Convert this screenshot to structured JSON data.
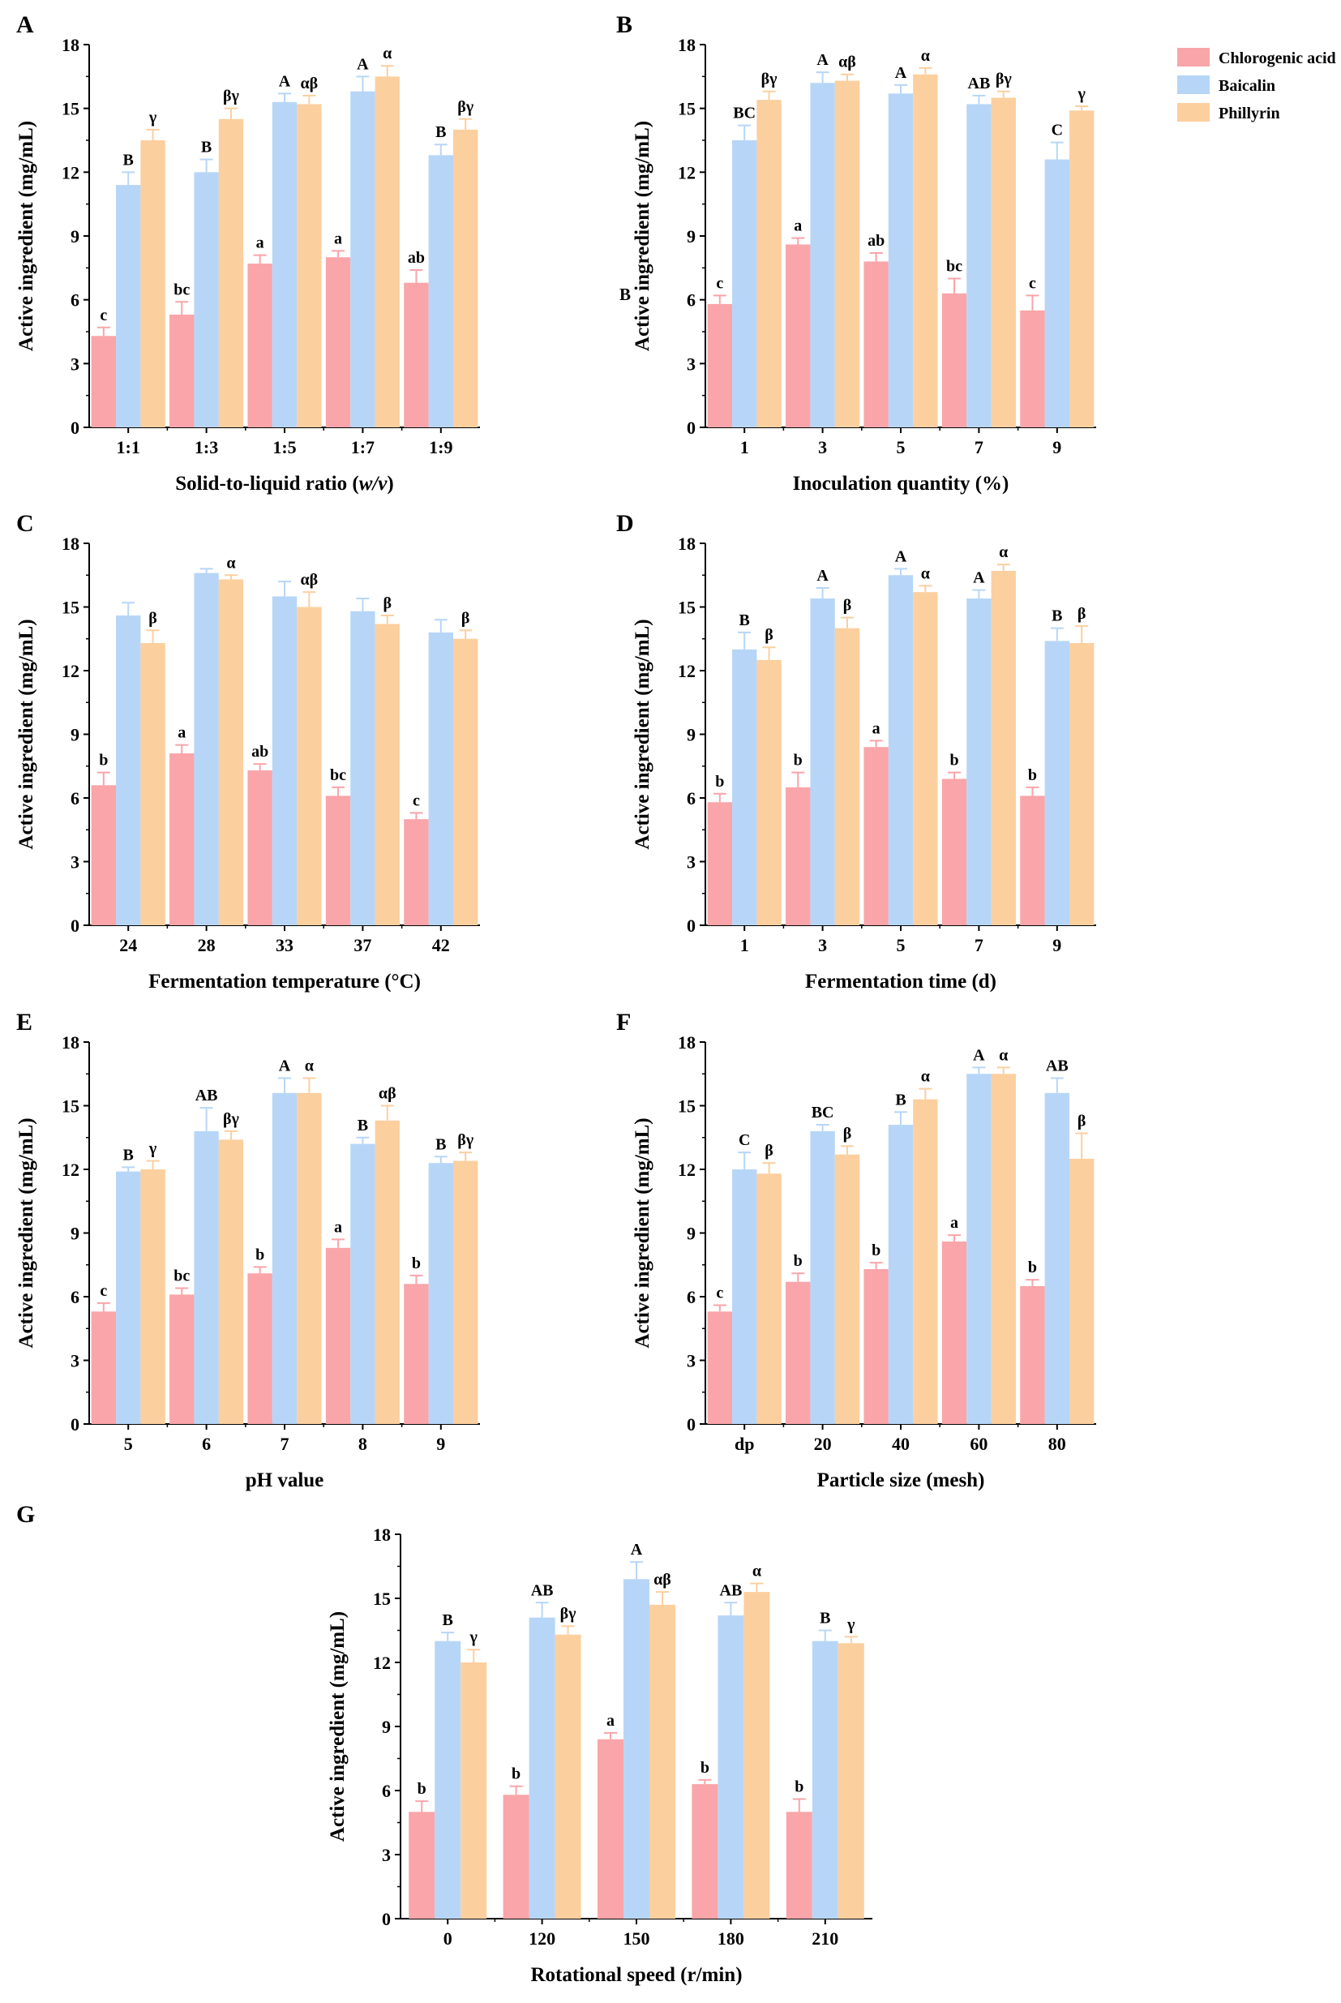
{
  "figure": {
    "legend": [
      {
        "name": "Chlorogenic acid",
        "color": "#f9a5a9"
      },
      {
        "name": "Baicalin",
        "color": "#b7d6f7"
      },
      {
        "name": "Phillyrin",
        "color": "#fccf9f"
      }
    ],
    "stray_label": "B"
  },
  "chart_data": [
    {
      "panel": "A",
      "type": "bar",
      "title": "",
      "xlabel": "Solid-to-liquid ratio (w/v)",
      "xlabel_parts": [
        {
          "text": "Solid-to-liquid ratio (",
          "italic": false
        },
        {
          "text": "w/v",
          "italic": true
        },
        {
          "text": ")",
          "italic": false
        }
      ],
      "ylabel": "Active ingredient (mg/mL)",
      "ylim": [
        0,
        18
      ],
      "yticks": [
        0,
        3,
        6,
        9,
        12,
        15,
        18
      ],
      "categories": [
        "1:1",
        "1:3",
        "1:5",
        "1:7",
        "1:9"
      ],
      "series": [
        {
          "name": "Chlorogenic acid",
          "values": [
            4.3,
            5.3,
            7.7,
            8.0,
            6.8
          ],
          "errors": [
            0.4,
            0.6,
            0.4,
            0.3,
            0.6
          ],
          "labels": [
            "c",
            "bc",
            "a",
            "a",
            "ab"
          ]
        },
        {
          "name": "Baicalin",
          "values": [
            11.4,
            12.0,
            15.3,
            15.8,
            12.8
          ],
          "errors": [
            0.6,
            0.6,
            0.4,
            0.7,
            0.5
          ],
          "labels": [
            "B",
            "B",
            "A",
            "A",
            "B"
          ]
        },
        {
          "name": "Phillyrin",
          "values": [
            13.5,
            14.5,
            15.2,
            16.5,
            14.0
          ],
          "errors": [
            0.5,
            0.5,
            0.4,
            0.5,
            0.5
          ],
          "labels": [
            "γ",
            "βγ",
            "αβ",
            "α",
            "βγ"
          ]
        }
      ]
    },
    {
      "panel": "B",
      "type": "bar",
      "title": "",
      "xlabel": "Inoculation quantity (%)",
      "ylabel": "Active ingredient (mg/mL)",
      "ylim": [
        0,
        18
      ],
      "yticks": [
        0,
        3,
        6,
        9,
        12,
        15,
        18
      ],
      "categories": [
        "1",
        "3",
        "5",
        "7",
        "9"
      ],
      "series": [
        {
          "name": "Chlorogenic acid",
          "values": [
            5.8,
            8.6,
            7.8,
            6.3,
            5.5
          ],
          "errors": [
            0.4,
            0.3,
            0.4,
            0.7,
            0.7
          ],
          "labels": [
            "c",
            "a",
            "ab",
            "bc",
            "c"
          ]
        },
        {
          "name": "Baicalin",
          "values": [
            13.5,
            16.2,
            15.7,
            15.2,
            12.6
          ],
          "errors": [
            0.7,
            0.5,
            0.4,
            0.4,
            0.8
          ],
          "labels": [
            "BC",
            "A",
            "A",
            "AB",
            "C"
          ]
        },
        {
          "name": "Phillyrin",
          "values": [
            15.4,
            16.3,
            16.6,
            15.5,
            14.9
          ],
          "errors": [
            0.4,
            0.3,
            0.3,
            0.3,
            0.2
          ],
          "labels": [
            "βγ",
            "αβ",
            "α",
            "βγ",
            "γ"
          ]
        }
      ]
    },
    {
      "panel": "C",
      "type": "bar",
      "title": "",
      "xlabel": "Fermentation temperature (°C)",
      "ylabel": "Active ingredient (mg/mL)",
      "ylim": [
        0,
        18
      ],
      "yticks": [
        0,
        3,
        6,
        9,
        12,
        15,
        18
      ],
      "categories": [
        "24",
        "28",
        "33",
        "37",
        "42"
      ],
      "series": [
        {
          "name": "Chlorogenic acid",
          "values": [
            6.6,
            8.1,
            7.3,
            6.1,
            5.0
          ],
          "errors": [
            0.6,
            0.4,
            0.3,
            0.4,
            0.3
          ],
          "labels": [
            "b",
            "a",
            "ab",
            "bc",
            "c"
          ]
        },
        {
          "name": "Baicalin",
          "values": [
            14.6,
            16.6,
            15.5,
            14.8,
            13.8
          ],
          "errors": [
            0.6,
            0.2,
            0.7,
            0.6,
            0.6
          ],
          "labels": [
            "",
            "",
            "",
            "",
            ""
          ]
        },
        {
          "name": "Phillyrin",
          "values": [
            13.3,
            16.3,
            15.0,
            14.2,
            13.5
          ],
          "errors": [
            0.6,
            0.2,
            0.7,
            0.4,
            0.4
          ],
          "labels": [
            "β",
            "α",
            "αβ",
            "β",
            "β"
          ]
        }
      ]
    },
    {
      "panel": "D",
      "type": "bar",
      "title": "",
      "xlabel": "Fermentation time (d)",
      "ylabel": "Active ingredient (mg/mL)",
      "ylim": [
        0,
        18
      ],
      "yticks": [
        0,
        3,
        6,
        9,
        12,
        15,
        18
      ],
      "categories": [
        "1",
        "3",
        "5",
        "7",
        "9"
      ],
      "series": [
        {
          "name": "Chlorogenic acid",
          "values": [
            5.8,
            6.5,
            8.4,
            6.9,
            6.1
          ],
          "errors": [
            0.4,
            0.7,
            0.3,
            0.3,
            0.4
          ],
          "labels": [
            "b",
            "b",
            "a",
            "b",
            "b"
          ]
        },
        {
          "name": "Baicalin",
          "values": [
            13.0,
            15.4,
            16.5,
            15.4,
            13.4
          ],
          "errors": [
            0.8,
            0.5,
            0.3,
            0.4,
            0.6
          ],
          "labels": [
            "B",
            "A",
            "A",
            "A",
            "B"
          ]
        },
        {
          "name": "Phillyrin",
          "values": [
            12.5,
            14.0,
            15.7,
            16.7,
            13.3
          ],
          "errors": [
            0.6,
            0.5,
            0.3,
            0.3,
            0.8
          ],
          "labels": [
            "β",
            "β",
            "α",
            "α",
            "β"
          ]
        }
      ]
    },
    {
      "panel": "E",
      "type": "bar",
      "title": "",
      "xlabel": "pH value",
      "ylabel": "Active ingredient (mg/mL)",
      "ylim": [
        0,
        18
      ],
      "yticks": [
        0,
        3,
        6,
        9,
        12,
        15,
        18
      ],
      "categories": [
        "5",
        "6",
        "7",
        "8",
        "9"
      ],
      "series": [
        {
          "name": "Chlorogenic acid",
          "values": [
            5.3,
            6.1,
            7.1,
            8.3,
            6.6
          ],
          "errors": [
            0.4,
            0.3,
            0.3,
            0.4,
            0.4
          ],
          "labels": [
            "c",
            "bc",
            "b",
            "a",
            "b"
          ]
        },
        {
          "name": "Baicalin",
          "values": [
            11.9,
            13.8,
            15.6,
            13.2,
            12.3
          ],
          "errors": [
            0.2,
            1.1,
            0.7,
            0.3,
            0.3
          ],
          "labels": [
            "B",
            "AB",
            "A",
            "B",
            "B"
          ]
        },
        {
          "name": "Phillyrin",
          "values": [
            12.0,
            13.4,
            15.6,
            14.3,
            12.4
          ],
          "errors": [
            0.4,
            0.4,
            0.7,
            0.7,
            0.4
          ],
          "labels": [
            "γ",
            "βγ",
            "α",
            "αβ",
            "βγ"
          ]
        }
      ]
    },
    {
      "panel": "F",
      "type": "bar",
      "title": "",
      "xlabel": "Particle size (mesh)",
      "ylabel": "Active ingredient (mg/mL)",
      "ylim": [
        0,
        18
      ],
      "yticks": [
        0,
        3,
        6,
        9,
        12,
        15,
        18
      ],
      "categories": [
        "dp",
        "20",
        "40",
        "60",
        "80"
      ],
      "series": [
        {
          "name": "Chlorogenic acid",
          "values": [
            5.3,
            6.7,
            7.3,
            8.6,
            6.5
          ],
          "errors": [
            0.3,
            0.4,
            0.3,
            0.3,
            0.3
          ],
          "labels": [
            "c",
            "b",
            "b",
            "a",
            "b"
          ]
        },
        {
          "name": "Baicalin",
          "values": [
            12.0,
            13.8,
            14.1,
            16.5,
            15.6
          ],
          "errors": [
            0.8,
            0.3,
            0.6,
            0.3,
            0.7
          ],
          "labels": [
            "C",
            "BC",
            "B",
            "A",
            "AB"
          ]
        },
        {
          "name": "Phillyrin",
          "values": [
            11.8,
            12.7,
            15.3,
            16.5,
            12.5
          ],
          "errors": [
            0.5,
            0.4,
            0.5,
            0.3,
            1.2
          ],
          "labels": [
            "β",
            "β",
            "α",
            "α",
            "β"
          ]
        }
      ]
    },
    {
      "panel": "G",
      "type": "bar",
      "title": "",
      "xlabel": "Rotational speed (r/min)",
      "ylabel": "Active ingredient (mg/mL)",
      "ylim": [
        0,
        18
      ],
      "yticks": [
        0,
        3,
        6,
        9,
        12,
        15,
        18
      ],
      "categories": [
        "0",
        "120",
        "150",
        "180",
        "210"
      ],
      "series": [
        {
          "name": "Chlorogenic acid",
          "values": [
            5.0,
            5.8,
            8.4,
            6.3,
            5.0
          ],
          "errors": [
            0.5,
            0.4,
            0.3,
            0.2,
            0.6
          ],
          "labels": [
            "b",
            "b",
            "a",
            "b",
            "b"
          ]
        },
        {
          "name": "Baicalin",
          "values": [
            13.0,
            14.1,
            15.9,
            14.2,
            13.0
          ],
          "errors": [
            0.4,
            0.7,
            0.8,
            0.6,
            0.5
          ],
          "labels": [
            "B",
            "AB",
            "A",
            "AB",
            "B"
          ]
        },
        {
          "name": "Phillyrin",
          "values": [
            12.0,
            13.3,
            14.7,
            15.3,
            12.9
          ],
          "errors": [
            0.6,
            0.4,
            0.6,
            0.4,
            0.3
          ],
          "labels": [
            "γ",
            "βγ",
            "αβ",
            "α",
            "γ"
          ]
        }
      ]
    }
  ]
}
